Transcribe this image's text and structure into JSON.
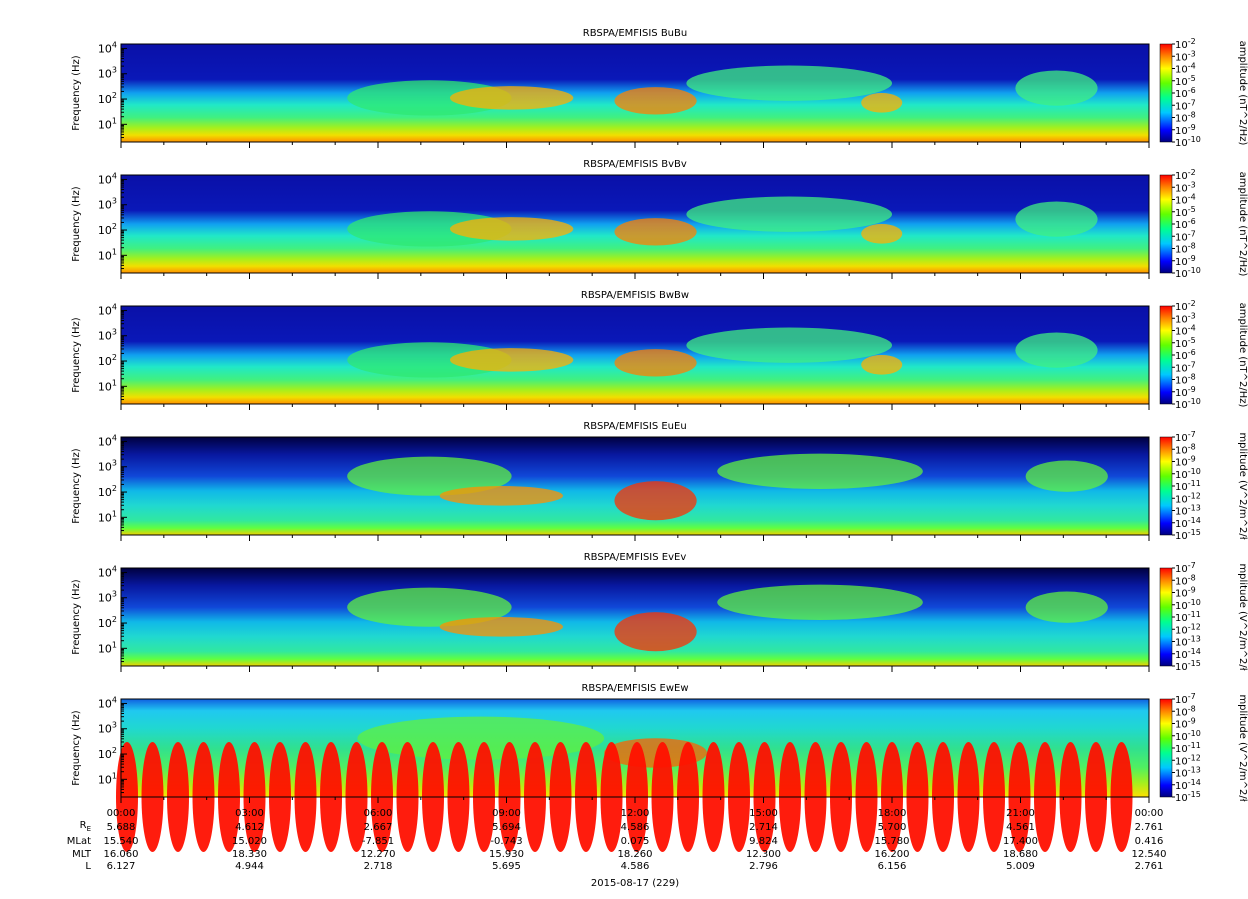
{
  "figure": {
    "date_label": "2015-08-17 (229)",
    "time_ticks": [
      "00:00",
      "03:00",
      "06:00",
      "09:00",
      "12:00",
      "15:00",
      "18:00",
      "21:00",
      "00:00"
    ],
    "ephemeris": {
      "labels": [
        "R_E",
        "MLat",
        "MLT",
        "L"
      ],
      "label_main": "R",
      "label_sub": "E",
      "rows": [
        [
          "5.688",
          "4.612",
          "2.667",
          "5.694",
          "4.586",
          "2.714",
          "5.700",
          "4.561",
          "2.761"
        ],
        [
          "15.540",
          "15.020",
          "-7.851",
          "-0.743",
          "0.075",
          "9.824",
          "15.780",
          "17.400",
          "0.416"
        ],
        [
          "16.060",
          "18.330",
          "12.270",
          "15.930",
          "18.260",
          "12.300",
          "16.200",
          "18.680",
          "12.540"
        ],
        [
          "6.127",
          "4.944",
          "2.718",
          "5.695",
          "4.586",
          "2.796",
          "6.156",
          "5.009",
          "2.761"
        ]
      ]
    }
  },
  "chart_data": [
    {
      "type": "heatmap",
      "title": "RBSPA/EMFISIS  BuBu",
      "ylabel": "Frequency (Hz)",
      "y_scale": "log",
      "ylim": [
        2,
        15000
      ],
      "y_ticks": [
        {
          "base": "10",
          "exp": "4"
        },
        {
          "base": "10",
          "exp": "3"
        },
        {
          "base": "10",
          "exp": "2"
        },
        {
          "base": "10",
          "exp": "1"
        }
      ],
      "x_range": [
        "00:00",
        "00:00"
      ],
      "colorbar": {
        "label": "amplitude (nT^2/Hz)",
        "range": [
          -10,
          -2
        ],
        "ticks": [
          "-2",
          "-3",
          "-4",
          "-5",
          "-6",
          "-7",
          "-8",
          "-9",
          "-10"
        ]
      }
    },
    {
      "type": "heatmap",
      "title": "RBSPA/EMFISIS  BvBv",
      "ylabel": "Frequency (Hz)",
      "y_scale": "log",
      "ylim": [
        2,
        15000
      ],
      "y_ticks": [
        {
          "base": "10",
          "exp": "4"
        },
        {
          "base": "10",
          "exp": "3"
        },
        {
          "base": "10",
          "exp": "2"
        },
        {
          "base": "10",
          "exp": "1"
        }
      ],
      "x_range": [
        "00:00",
        "00:00"
      ],
      "colorbar": {
        "label": "amplitude (nT^2/Hz)",
        "range": [
          -10,
          -2
        ],
        "ticks": [
          "-2",
          "-3",
          "-4",
          "-5",
          "-6",
          "-7",
          "-8",
          "-9",
          "-10"
        ]
      }
    },
    {
      "type": "heatmap",
      "title": "RBSPA/EMFISIS  BwBw",
      "ylabel": "Frequency (Hz)",
      "y_scale": "log",
      "ylim": [
        2,
        15000
      ],
      "y_ticks": [
        {
          "base": "10",
          "exp": "4"
        },
        {
          "base": "10",
          "exp": "3"
        },
        {
          "base": "10",
          "exp": "2"
        },
        {
          "base": "10",
          "exp": "1"
        }
      ],
      "x_range": [
        "00:00",
        "00:00"
      ],
      "colorbar": {
        "label": "amplitude (nT^2/Hz)",
        "range": [
          -10,
          -2
        ],
        "ticks": [
          "-2",
          "-3",
          "-4",
          "-5",
          "-6",
          "-7",
          "-8",
          "-9",
          "-10"
        ]
      }
    },
    {
      "type": "heatmap",
      "title": "RBSPA/EMFISIS  EuEu",
      "ylabel": "Frequency (Hz)",
      "y_scale": "log",
      "ylim": [
        2,
        15000
      ],
      "y_ticks": [
        {
          "base": "10",
          "exp": "4"
        },
        {
          "base": "10",
          "exp": "3"
        },
        {
          "base": "10",
          "exp": "2"
        },
        {
          "base": "10",
          "exp": "1"
        }
      ],
      "x_range": [
        "00:00",
        "00:00"
      ],
      "colorbar": {
        "label": "mplitude (V^2/m^2/ł",
        "range": [
          -15,
          -7
        ],
        "ticks": [
          "-7",
          "-8",
          "-9",
          "-10",
          "-11",
          "-12",
          "-13",
          "-14",
          "-15"
        ]
      }
    },
    {
      "type": "heatmap",
      "title": "RBSPA/EMFISIS  EvEv",
      "ylabel": "Frequency (Hz)",
      "y_scale": "log",
      "ylim": [
        2,
        15000
      ],
      "y_ticks": [
        {
          "base": "10",
          "exp": "4"
        },
        {
          "base": "10",
          "exp": "3"
        },
        {
          "base": "10",
          "exp": "2"
        },
        {
          "base": "10",
          "exp": "1"
        }
      ],
      "x_range": [
        "00:00",
        "00:00"
      ],
      "colorbar": {
        "label": "mplitude (V^2/m^2/ł",
        "range": [
          -15,
          -7
        ],
        "ticks": [
          "-7",
          "-8",
          "-9",
          "-10",
          "-11",
          "-12",
          "-13",
          "-14",
          "-15"
        ]
      }
    },
    {
      "type": "heatmap",
      "title": "RBSPA/EMFISIS  EwEw",
      "ylabel": "Frequency (Hz)",
      "y_scale": "log",
      "ylim": [
        2,
        15000
      ],
      "y_ticks": [
        {
          "base": "10",
          "exp": "4"
        },
        {
          "base": "10",
          "exp": "3"
        },
        {
          "base": "10",
          "exp": "2"
        },
        {
          "base": "10",
          "exp": "1"
        }
      ],
      "x_range": [
        "00:00",
        "00:00"
      ],
      "colorbar": {
        "label": "mplitude (V^2/m^2/ł",
        "range": [
          -15,
          -7
        ],
        "ticks": [
          "-7",
          "-8",
          "-9",
          "-10",
          "-11",
          "-12",
          "-13",
          "-14",
          "-15"
        ]
      }
    }
  ]
}
